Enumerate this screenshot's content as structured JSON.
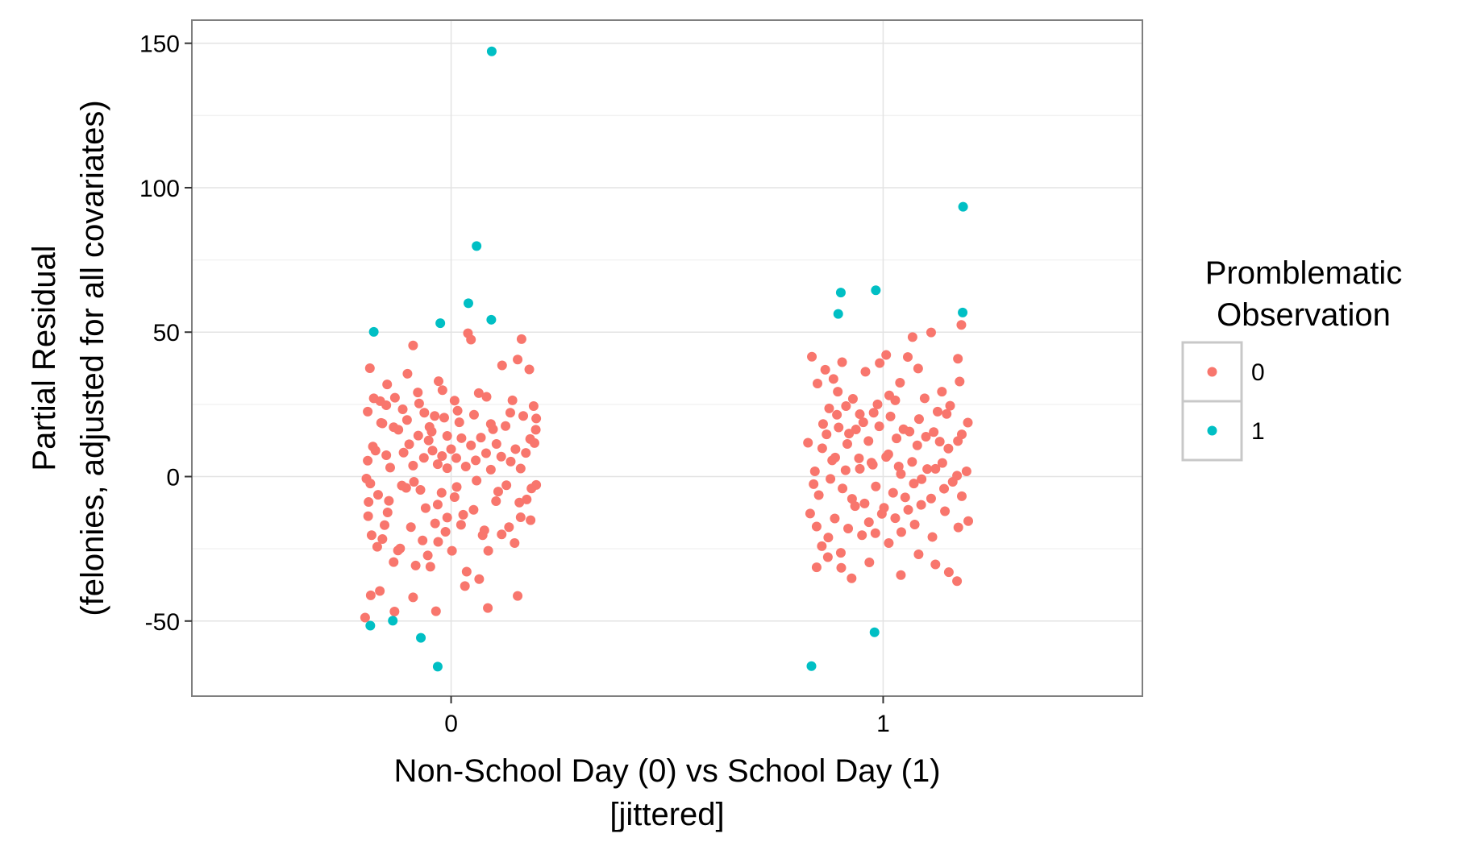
{
  "chart_data": {
    "type": "scatter",
    "title": "",
    "xlabel": "Non-School Day (0) vs School Day (1)\n[jittered]",
    "xlabel_lines": [
      "Non-School Day (0) vs School Day (1)",
      "[jittered]"
    ],
    "ylabel": "Partial Residual\n(felonies, adjusted for all covariates)",
    "ylabel_lines": [
      "Partial Residual",
      "(felonies, adjusted for all covariates)"
    ],
    "xlim": [
      -0.6,
      1.6
    ],
    "ylim": [
      -76,
      158
    ],
    "x_ticks": [
      0,
      1
    ],
    "x_tick_labels": [
      "0",
      "1"
    ],
    "y_ticks": [
      -50,
      0,
      50,
      100,
      150
    ],
    "y_tick_labels": [
      "-50",
      "0",
      "50",
      "100",
      "150"
    ],
    "grid": true,
    "legend": {
      "title_lines": [
        "Promblematic",
        "Observation"
      ],
      "placement": "right",
      "entries": [
        {
          "label": "0",
          "color": "#F8766D"
        },
        {
          "label": "1",
          "color": "#00BFC4"
        }
      ]
    },
    "series": [
      {
        "name": "0",
        "color": "#F8766D",
        "points": [
          [
            -0.188,
            37.5
          ],
          [
            -0.179,
            27.1
          ],
          [
            -0.159,
            18.4
          ],
          [
            -0.148,
            31.9
          ],
          [
            -0.13,
            27.3
          ],
          [
            -0.112,
            23.3
          ],
          [
            -0.101,
            35.6
          ],
          [
            -0.088,
            45.4
          ],
          [
            -0.077,
            29.1
          ],
          [
            -0.062,
            22.1
          ],
          [
            -0.05,
            17.2
          ],
          [
            -0.038,
            21.0
          ],
          [
            -0.029,
            33.0
          ],
          [
            -0.02,
            29.9
          ],
          [
            -0.009,
            14.1
          ],
          [
            0.008,
            26.3
          ],
          [
            0.019,
            18.8
          ],
          [
            0.039,
            49.6
          ],
          [
            0.046,
            47.4
          ],
          [
            0.064,
            28.9
          ],
          [
            0.082,
            27.6
          ],
          [
            0.097,
            16.4
          ],
          [
            0.118,
            38.5
          ],
          [
            0.142,
            26.4
          ],
          [
            0.154,
            40.5
          ],
          [
            0.163,
            47.6
          ],
          [
            0.181,
            37.1
          ],
          [
            0.191,
            24.4
          ],
          [
            0.197,
            20.1
          ],
          [
            -0.196,
            -0.7
          ],
          [
            -0.191,
            -8.8
          ],
          [
            -0.184,
            -20.3
          ],
          [
            -0.171,
            -24.3
          ],
          [
            -0.159,
            -21.6
          ],
          [
            -0.147,
            -12.4
          ],
          [
            -0.133,
            -29.6
          ],
          [
            -0.123,
            -25.6
          ],
          [
            -0.104,
            -3.9
          ],
          [
            -0.093,
            -17.5
          ],
          [
            -0.086,
            -1.8
          ],
          [
            -0.066,
            -22.1
          ],
          [
            -0.059,
            -10.9
          ],
          [
            -0.048,
            -31.2
          ],
          [
            -0.037,
            -16.2
          ],
          [
            -0.03,
            -22.6
          ],
          [
            -0.022,
            -5.6
          ],
          [
            -0.009,
            -14.2
          ],
          [
            0.002,
            -25.7
          ],
          [
            0.013,
            -3.6
          ],
          [
            0.023,
            -16.7
          ],
          [
            0.036,
            -32.9
          ],
          [
            0.052,
            -11.5
          ],
          [
            0.073,
            -20.3
          ],
          [
            0.086,
            -25.7
          ],
          [
            0.104,
            -8.5
          ],
          [
            0.117,
            -20.0
          ],
          [
            0.128,
            -3.0
          ],
          [
            0.147,
            -23.0
          ],
          [
            0.161,
            -14.1
          ],
          [
            0.175,
            -7.9
          ],
          [
            0.186,
            -4.1
          ],
          [
            0.197,
            -2.9
          ],
          [
            -0.199,
            -48.8
          ],
          [
            -0.186,
            -41.1
          ],
          [
            -0.165,
            -39.6
          ],
          [
            -0.131,
            -46.7
          ],
          [
            -0.088,
            -41.8
          ],
          [
            -0.035,
            -46.6
          ],
          [
            0.032,
            -37.9
          ],
          [
            0.065,
            -35.5
          ],
          [
            0.085,
            -45.5
          ],
          [
            0.154,
            -41.3
          ],
          [
            -0.193,
            5.5
          ],
          [
            -0.175,
            9.0
          ],
          [
            -0.162,
            18.6
          ],
          [
            -0.15,
            7.4
          ],
          [
            -0.141,
            3.1
          ],
          [
            -0.122,
            16.2
          ],
          [
            -0.11,
            8.3
          ],
          [
            -0.097,
            11.2
          ],
          [
            -0.088,
            3.8
          ],
          [
            -0.076,
            14.2
          ],
          [
            -0.063,
            6.5
          ],
          [
            -0.052,
            12.5
          ],
          [
            -0.043,
            9.0
          ],
          [
            -0.031,
            4.3
          ],
          [
            -0.021,
            7.1
          ],
          [
            -0.009,
            2.9
          ],
          [
            0.0,
            9.5
          ],
          [
            0.012,
            6.4
          ],
          [
            0.024,
            13.3
          ],
          [
            0.034,
            3.5
          ],
          [
            0.046,
            10.8
          ],
          [
            0.057,
            5.6
          ],
          [
            0.069,
            13.5
          ],
          [
            0.081,
            8.1
          ],
          [
            0.092,
            2.4
          ],
          [
            0.105,
            11.3
          ],
          [
            0.116,
            6.9
          ],
          [
            0.126,
            17.5
          ],
          [
            0.138,
            5.2
          ],
          [
            0.149,
            9.5
          ],
          [
            0.161,
            2.8
          ],
          [
            0.173,
            8.2
          ],
          [
            0.183,
            13.0
          ],
          [
            0.193,
            11.6
          ],
          [
            -0.193,
            22.5
          ],
          [
            -0.181,
            10.4
          ],
          [
            -0.164,
            26.1
          ],
          [
            -0.15,
            24.7
          ],
          [
            -0.133,
            17.1
          ],
          [
            -0.102,
            19.6
          ],
          [
            -0.074,
            25.3
          ],
          [
            -0.045,
            15.6
          ],
          [
            -0.016,
            20.4
          ],
          [
            0.015,
            22.8
          ],
          [
            0.053,
            21.4
          ],
          [
            0.092,
            18.2
          ],
          [
            0.137,
            22.1
          ],
          [
            0.167,
            21.0
          ],
          [
            0.196,
            16.2
          ],
          [
            -0.187,
            -2.4
          ],
          [
            -0.169,
            -6.3
          ],
          [
            -0.144,
            -8.4
          ],
          [
            -0.114,
            -3.1
          ],
          [
            -0.071,
            -4.6
          ],
          [
            -0.031,
            -9.7
          ],
          [
            0.008,
            -7.1
          ],
          [
            0.059,
            -1.4
          ],
          [
            0.109,
            -5.2
          ],
          [
            0.158,
            -9.0
          ],
          [
            -0.192,
            -13.7
          ],
          [
            -0.154,
            -16.8
          ],
          [
            -0.118,
            -24.9
          ],
          [
            -0.082,
            -30.8
          ],
          [
            -0.054,
            -27.3
          ],
          [
            -0.013,
            -19.1
          ],
          [
            0.028,
            -13.2
          ],
          [
            0.077,
            -18.6
          ],
          [
            0.134,
            -17.5
          ],
          [
            0.184,
            -15.1
          ],
          [
            0.835,
            41.5
          ],
          [
            0.848,
            32.2
          ],
          [
            0.866,
            37.0
          ],
          [
            0.875,
            23.6
          ],
          [
            0.885,
            33.8
          ],
          [
            0.895,
            29.4
          ],
          [
            0.905,
            39.6
          ],
          [
            0.914,
            24.4
          ],
          [
            0.93,
            26.9
          ],
          [
            0.946,
            21.6
          ],
          [
            0.959,
            36.3
          ],
          [
            0.978,
            22.1
          ],
          [
            0.992,
            39.3
          ],
          [
            1.007,
            42.1
          ],
          [
            1.014,
            28.1
          ],
          [
            1.028,
            26.4
          ],
          [
            1.039,
            32.5
          ],
          [
            1.057,
            41.4
          ],
          [
            1.068,
            48.3
          ],
          [
            1.081,
            37.4
          ],
          [
            1.096,
            27.1
          ],
          [
            1.111,
            49.9
          ],
          [
            1.126,
            22.5
          ],
          [
            1.136,
            29.4
          ],
          [
            1.155,
            24.5
          ],
          [
            1.173,
            40.8
          ],
          [
            1.177,
            32.9
          ],
          [
            1.181,
            52.5
          ],
          [
            0.826,
            11.7
          ],
          [
            0.839,
            -2.6
          ],
          [
            0.851,
            -6.4
          ],
          [
            0.859,
            9.8
          ],
          [
            0.869,
            14.6
          ],
          [
            0.878,
            -0.8
          ],
          [
            0.889,
            6.6
          ],
          [
            0.897,
            17.0
          ],
          [
            0.906,
            -4.1
          ],
          [
            0.917,
            11.3
          ],
          [
            0.928,
            -7.7
          ],
          [
            0.937,
            16.3
          ],
          [
            0.946,
            2.7
          ],
          [
            0.957,
            -9.3
          ],
          [
            0.966,
            12.3
          ],
          [
            0.973,
            4.8
          ],
          [
            0.983,
            -3.4
          ],
          [
            0.991,
            17.4
          ],
          [
            1.002,
            -10.8
          ],
          [
            1.012,
            7.7
          ],
          [
            1.023,
            -5.6
          ],
          [
            1.031,
            13.2
          ],
          [
            1.041,
            0.9
          ],
          [
            1.051,
            -7.2
          ],
          [
            1.061,
            15.6
          ],
          [
            1.071,
            -2.4
          ],
          [
            1.079,
            10.8
          ],
          [
            1.089,
            -0.9
          ],
          [
            1.099,
            13.8
          ],
          [
            1.111,
            -7.6
          ],
          [
            1.121,
            2.7
          ],
          [
            1.131,
            12.1
          ],
          [
            1.141,
            -4.2
          ],
          [
            1.151,
            9.7
          ],
          [
            1.161,
            -1.8
          ],
          [
            1.173,
            12.3
          ],
          [
            1.182,
            -6.8
          ],
          [
            1.193,
            1.8
          ],
          [
            0.831,
            -12.8
          ],
          [
            0.846,
            -17.3
          ],
          [
            0.858,
            -24.1
          ],
          [
            0.873,
            -21.1
          ],
          [
            0.888,
            -14.5
          ],
          [
            0.902,
            -26.4
          ],
          [
            0.919,
            -18.0
          ],
          [
            0.935,
            -10.2
          ],
          [
            0.951,
            -20.3
          ],
          [
            0.967,
            -15.8
          ],
          [
            0.982,
            -19.6
          ],
          [
            0.997,
            -12.9
          ],
          [
            1.013,
            -23.0
          ],
          [
            1.028,
            -14.4
          ],
          [
            1.042,
            -19.2
          ],
          [
            1.058,
            -11.5
          ],
          [
            1.073,
            -16.6
          ],
          [
            1.088,
            -9.8
          ],
          [
            1.114,
            -20.9
          ],
          [
            1.143,
            -12.0
          ],
          [
            1.174,
            -17.6
          ],
          [
            1.197,
            -15.4
          ],
          [
            0.846,
            -31.4
          ],
          [
            0.872,
            -27.9
          ],
          [
            0.903,
            -31.6
          ],
          [
            0.927,
            -35.2
          ],
          [
            0.968,
            -29.7
          ],
          [
            1.041,
            -34.1
          ],
          [
            1.082,
            -26.9
          ],
          [
            1.121,
            -30.4
          ],
          [
            1.152,
            -33.1
          ],
          [
            1.171,
            -36.2
          ],
          [
            0.842,
            1.8
          ],
          [
            0.882,
            5.6
          ],
          [
            0.913,
            2.2
          ],
          [
            0.944,
            6.3
          ],
          [
            0.976,
            4.1
          ],
          [
            1.007,
            6.8
          ],
          [
            1.036,
            3.5
          ],
          [
            1.067,
            5.1
          ],
          [
            1.102,
            2.6
          ],
          [
            1.137,
            4.7
          ],
          [
            1.171,
            0.3
          ],
          [
            0.861,
            18.2
          ],
          [
            0.893,
            21.4
          ],
          [
            0.921,
            14.9
          ],
          [
            0.954,
            18.8
          ],
          [
            0.987,
            25.0
          ],
          [
            1.017,
            20.8
          ],
          [
            1.047,
            16.4
          ],
          [
            1.083,
            19.9
          ],
          [
            1.117,
            15.4
          ],
          [
            1.147,
            21.7
          ],
          [
            1.182,
            14.6
          ],
          [
            1.196,
            18.7
          ]
        ]
      },
      {
        "name": "1",
        "color": "#00BFC4",
        "points": [
          [
            0.094,
            147.2
          ],
          [
            0.059,
            79.8
          ],
          [
            0.04,
            60.0
          ],
          [
            0.093,
            54.3
          ],
          [
            -0.025,
            53.1
          ],
          [
            -0.179,
            50.1
          ],
          [
            -0.187,
            -51.6
          ],
          [
            -0.135,
            -49.9
          ],
          [
            -0.07,
            -55.8
          ],
          [
            -0.031,
            -65.8
          ],
          [
            1.185,
            93.4
          ],
          [
            0.983,
            64.5
          ],
          [
            0.902,
            63.7
          ],
          [
            0.896,
            56.3
          ],
          [
            1.184,
            56.8
          ],
          [
            0.98,
            -53.9
          ],
          [
            0.834,
            -65.6
          ]
        ]
      }
    ]
  }
}
